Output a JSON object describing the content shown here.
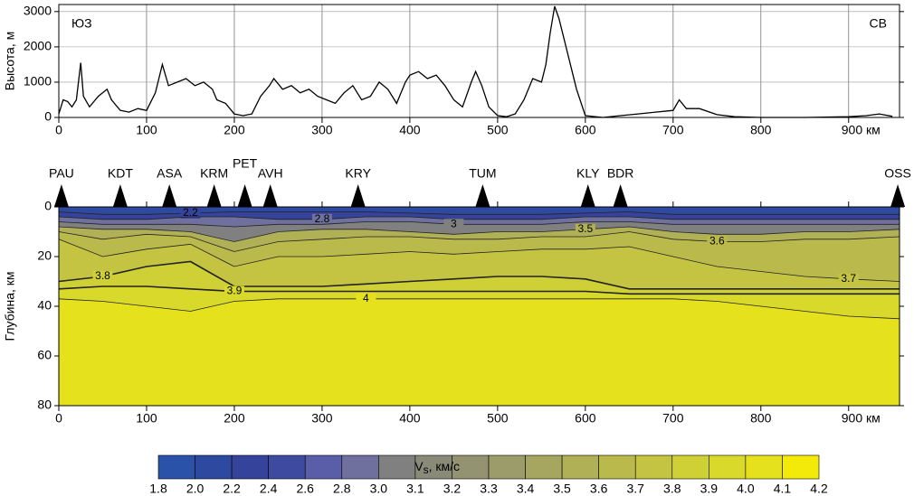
{
  "chart_data": [
    {
      "type": "line",
      "ylabel": "Высота, м",
      "annotations": [
        "ЮЗ",
        "СВ"
      ],
      "color": "#000000",
      "grid": true,
      "xlim": [
        0,
        958
      ],
      "ylim": [
        0,
        3200
      ],
      "xticks": [
        0,
        100,
        200,
        300,
        400,
        500,
        600,
        700,
        800,
        {
          "value": 900,
          "label": "900 км"
        }
      ],
      "yticks": [
        0,
        1000,
        2000,
        3000
      ],
      "x": [
        0,
        5,
        10,
        15,
        20,
        25,
        28,
        35,
        45,
        55,
        60,
        70,
        80,
        90,
        100,
        110,
        118,
        125,
        135,
        145,
        155,
        165,
        175,
        180,
        190,
        200,
        210,
        220,
        230,
        240,
        245,
        255,
        265,
        275,
        285,
        295,
        305,
        315,
        325,
        335,
        345,
        355,
        365,
        375,
        385,
        395,
        400,
        410,
        420,
        430,
        440,
        450,
        460,
        470,
        475,
        482,
        490,
        500,
        510,
        520,
        530,
        540,
        550,
        555,
        560,
        565,
        570,
        580,
        590,
        600,
        620,
        640,
        660,
        680,
        700,
        707,
        715,
        730,
        750,
        770,
        800,
        850,
        900,
        920,
        935,
        950
      ],
      "values": [
        100,
        500,
        450,
        300,
        500,
        1550,
        600,
        300,
        600,
        800,
        500,
        200,
        150,
        250,
        200,
        700,
        1500,
        900,
        1000,
        1100,
        900,
        1000,
        800,
        500,
        400,
        100,
        50,
        100,
        600,
        900,
        1100,
        800,
        900,
        700,
        800,
        600,
        500,
        400,
        700,
        900,
        500,
        600,
        1000,
        800,
        400,
        1000,
        1200,
        1300,
        1100,
        1200,
        900,
        500,
        300,
        1000,
        1300,
        900,
        300,
        50,
        20,
        100,
        500,
        1100,
        1000,
        1500,
        2400,
        3150,
        2800,
        1800,
        800,
        50,
        0,
        50,
        100,
        150,
        200,
        500,
        250,
        250,
        80,
        20,
        0,
        0,
        20,
        50,
        100,
        30
      ]
    },
    {
      "type": "contour",
      "ylabel": "Глубина, км",
      "grid": false,
      "xlim": [
        0,
        958
      ],
      "ylim": [
        0,
        80
      ],
      "xticks": [
        0,
        100,
        200,
        300,
        400,
        500,
        600,
        700,
        800,
        {
          "value": 900,
          "label": "900 км"
        }
      ],
      "yticks": [
        0,
        20,
        40,
        60,
        80
      ],
      "stations": {
        "names": [
          "PAU",
          "KDT",
          "ASA",
          "KRM",
          "PET",
          "AVH",
          "KRY",
          "TUM",
          "KLY",
          "BDR",
          "OSS"
        ],
        "x": [
          3,
          70,
          126,
          177,
          212,
          241,
          341,
          483,
          603,
          640,
          956
        ]
      },
      "contours": [
        {
          "level": 2.2,
          "x": [
            0,
            50,
            100,
            150,
            200,
            250,
            300,
            350,
            400,
            450,
            500,
            550,
            600,
            650,
            700,
            750,
            800,
            850,
            900,
            958
          ],
          "depth": [
            2,
            3,
            3,
            2.5,
            2,
            2,
            2,
            2,
            2.5,
            3,
            3,
            3,
            2.5,
            2,
            3,
            3,
            3,
            3,
            3,
            3
          ]
        },
        {
          "level": 2.8,
          "x": [
            0,
            50,
            100,
            150,
            200,
            250,
            300,
            350,
            400,
            450,
            500,
            550,
            600,
            650,
            700,
            750,
            800,
            850,
            900,
            958
          ],
          "depth": [
            4,
            5,
            5,
            4,
            4,
            5,
            5,
            4,
            4,
            5,
            5,
            5,
            4,
            4,
            5,
            5,
            5,
            5,
            5,
            5
          ]
        },
        {
          "level": 3,
          "x": [
            0,
            50,
            100,
            150,
            200,
            250,
            300,
            350,
            400,
            450,
            500,
            550,
            600,
            650,
            700,
            750,
            800,
            850,
            900,
            958
          ],
          "depth": [
            6,
            7,
            7,
            7,
            8,
            7,
            7,
            6,
            6,
            7,
            7,
            7,
            6,
            6,
            7,
            7,
            7,
            7,
            7,
            7
          ]
        },
        {
          "level": 3.5,
          "x": [
            0,
            50,
            100,
            150,
            200,
            250,
            300,
            350,
            400,
            450,
            500,
            550,
            600,
            650,
            700,
            750,
            800,
            850,
            900,
            958
          ],
          "depth": [
            8,
            9,
            9,
            10,
            14,
            10,
            9,
            9,
            10,
            11,
            10,
            10,
            9,
            8,
            10,
            11,
            11,
            10,
            10,
            9
          ]
        },
        {
          "level": 3.6,
          "x": [
            0,
            50,
            100,
            150,
            200,
            250,
            300,
            350,
            400,
            450,
            500,
            550,
            600,
            650,
            700,
            750,
            800,
            850,
            900,
            958
          ],
          "depth": [
            10,
            13,
            11,
            12,
            18,
            14,
            13,
            12,
            12,
            13,
            13,
            12,
            12,
            10,
            13,
            14,
            14,
            13,
            13,
            12
          ]
        },
        {
          "level": 3.7,
          "x": [
            0,
            50,
            100,
            150,
            200,
            250,
            300,
            350,
            400,
            450,
            500,
            550,
            600,
            650,
            700,
            750,
            800,
            850,
            900,
            958
          ],
          "depth": [
            13,
            20,
            17,
            15,
            24,
            20,
            20,
            19,
            18,
            19,
            18,
            17,
            17,
            16,
            20,
            24,
            26,
            28,
            29,
            30
          ]
        },
        {
          "level": 3.8,
          "x": [
            0,
            50,
            100,
            150,
            200,
            250,
            300,
            350,
            400,
            450,
            500,
            550,
            600,
            650,
            700,
            750,
            800,
            850,
            900,
            958
          ],
          "depth": [
            30,
            28,
            24,
            22,
            32,
            32,
            32,
            31,
            30,
            29,
            28,
            28,
            29,
            33,
            33,
            33,
            33,
            33,
            33,
            33
          ]
        },
        {
          "level": 3.9,
          "x": [
            0,
            50,
            100,
            150,
            200,
            250,
            300,
            350,
            400,
            450,
            500,
            550,
            600,
            650,
            700,
            750,
            800,
            850,
            900,
            958
          ],
          "depth": [
            33,
            32,
            32,
            33,
            34,
            34,
            34,
            34,
            34,
            34,
            34,
            34,
            34,
            35,
            35,
            35,
            35,
            35,
            35,
            35
          ]
        },
        {
          "level": 4,
          "x": [
            0,
            50,
            100,
            150,
            200,
            250,
            300,
            350,
            400,
            450,
            500,
            550,
            600,
            650,
            700,
            750,
            800,
            850,
            900,
            958
          ],
          "depth": [
            37,
            38,
            40,
            42,
            38,
            37,
            37,
            37,
            37,
            37,
            37,
            37,
            37,
            37,
            37,
            38,
            40,
            42,
            44,
            45
          ]
        }
      ]
    },
    {
      "type": "colorbar",
      "label_main": "V",
      "label_sub": "s",
      "label_unit": ", км/с",
      "ticks": [
        1.8,
        {
          "value": 2,
          "label": "2.0"
        },
        2.2,
        2.4,
        2.6,
        2.8,
        {
          "value": 3,
          "label": "3.0"
        },
        3.1,
        3.2,
        3.3,
        3.4,
        3.5,
        3.6,
        3.7,
        3.8,
        3.9,
        {
          "value": 4,
          "label": "4.0"
        },
        4.1,
        4.2
      ],
      "colors": [
        "#2a52a8",
        "#2e4aa0",
        "#36439b",
        "#3d4a9f",
        "#5a5ea8",
        "#6f709e",
        "#808080",
        "#8a8a78",
        "#939372",
        "#9c9c6a",
        "#a6a660",
        "#b0b057",
        "#baba4c",
        "#c4c442",
        "#cfcf36",
        "#d9d92b",
        "#e5e21d",
        "#f3ea0a"
      ]
    }
  ]
}
